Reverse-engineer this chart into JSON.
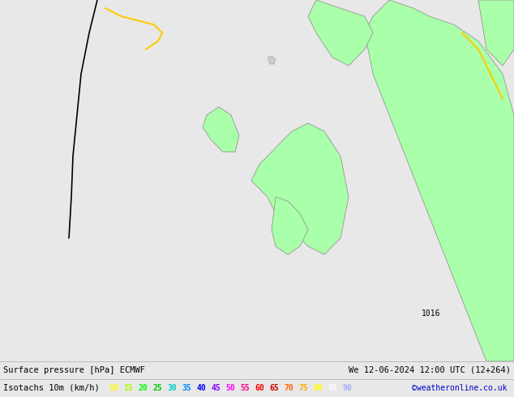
{
  "title_left": "Surface pressure [hPa] ECMWF",
  "title_right": "We 12-06-2024 12:00 UTC (12+264)",
  "legend_label": "Isotachs 10m (km/h)",
  "copyright": "©weatheronline.co.uk",
  "isotach_values": [
    10,
    15,
    20,
    25,
    30,
    35,
    40,
    45,
    50,
    55,
    60,
    65,
    70,
    75,
    80,
    85,
    90
  ],
  "isotach_colors": [
    "#ffff00",
    "#c8ff00",
    "#00ff00",
    "#00c800",
    "#00c8c8",
    "#0096ff",
    "#0000ff",
    "#9600ff",
    "#ff00ff",
    "#ff0096",
    "#ff0000",
    "#c80000",
    "#ff6400",
    "#ffaa00",
    "#ffff00",
    "#ffffff",
    "#c8c8ff"
  ],
  "bg_color": "#e8e8e8",
  "map_bg": "#f0f0f0",
  "land_color": "#aaffaa",
  "sea_color": "#e8e8e8",
  "bottom_bar_color": "#d8d8d8",
  "text_color": "#000000",
  "fig_width": 6.34,
  "fig_height": 4.9,
  "dpi": 100
}
